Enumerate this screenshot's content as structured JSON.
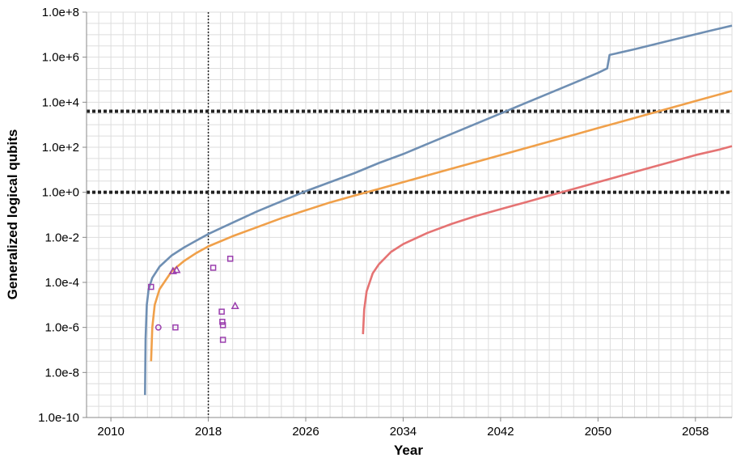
{
  "chart_data": {
    "type": "line",
    "xlabel": "Year",
    "ylabel": "Generalized logical qubits",
    "xlim": [
      2008,
      2061
    ],
    "ylim_log10": [
      -10,
      8
    ],
    "y_scale": "log",
    "grid": true,
    "x_ticks": [
      {
        "value": 2010,
        "label": "2010"
      },
      {
        "value": 2018,
        "label": "2018"
      },
      {
        "value": 2026,
        "label": "2026"
      },
      {
        "value": 2034,
        "label": "2034"
      },
      {
        "value": 2042,
        "label": "2042"
      },
      {
        "value": 2050,
        "label": "2050"
      },
      {
        "value": 2058,
        "label": "2058"
      }
    ],
    "y_ticks": [
      {
        "value_log10": 8,
        "label": "1.0e+8"
      },
      {
        "value_log10": 6,
        "label": "1.0e+6"
      },
      {
        "value_log10": 4,
        "label": "1.0e+4"
      },
      {
        "value_log10": 2,
        "label": "1.0e+2"
      },
      {
        "value_log10": 0,
        "label": "1.0e+0"
      },
      {
        "value_log10": -2,
        "label": "1.0e-2"
      },
      {
        "value_log10": -4,
        "label": "1.0e-4"
      },
      {
        "value_log10": -6,
        "label": "1.0e-6"
      },
      {
        "value_log10": -8,
        "label": "1.0e-8"
      },
      {
        "value_log10": -10,
        "label": "1.0e-10"
      }
    ],
    "reference_lines": {
      "vertical_x": 2018,
      "horizontal_log10": [
        3.6,
        0
      ]
    },
    "series": [
      {
        "color": "#6f8fb3",
        "points": [
          [
            2012.8,
            -9.0
          ],
          [
            2012.85,
            -6.5
          ],
          [
            2012.95,
            -5.0
          ],
          [
            2013.1,
            -4.3
          ],
          [
            2013.4,
            -3.8
          ],
          [
            2014.0,
            -3.3
          ],
          [
            2015.0,
            -2.8
          ],
          [
            2016.0,
            -2.45
          ],
          [
            2017.0,
            -2.15
          ],
          [
            2018.0,
            -1.85
          ],
          [
            2019.0,
            -1.6
          ],
          [
            2020.0,
            -1.35
          ],
          [
            2022.0,
            -0.85
          ],
          [
            2024.0,
            -0.4
          ],
          [
            2026.0,
            0.05
          ],
          [
            2028.0,
            0.45
          ],
          [
            2030.0,
            0.85
          ],
          [
            2032.0,
            1.3
          ],
          [
            2034.0,
            1.7
          ],
          [
            2036.0,
            2.15
          ],
          [
            2038.0,
            2.6
          ],
          [
            2040.0,
            3.05
          ],
          [
            2042.0,
            3.5
          ],
          [
            2044.0,
            3.95
          ],
          [
            2046.0,
            4.4
          ],
          [
            2048.0,
            4.85
          ],
          [
            2050.0,
            5.3
          ],
          [
            2050.75,
            5.5
          ],
          [
            2050.95,
            6.1
          ],
          [
            2053.0,
            6.35
          ],
          [
            2056.0,
            6.75
          ],
          [
            2059.0,
            7.15
          ],
          [
            2061.0,
            7.4
          ]
        ]
      },
      {
        "color": "#f0a04a",
        "points": [
          [
            2013.3,
            -7.5
          ],
          [
            2013.4,
            -6.0
          ],
          [
            2013.6,
            -5.0
          ],
          [
            2014.0,
            -4.3
          ],
          [
            2015.0,
            -3.5
          ],
          [
            2016.0,
            -3.05
          ],
          [
            2017.0,
            -2.7
          ],
          [
            2018.0,
            -2.4
          ],
          [
            2020.0,
            -1.95
          ],
          [
            2022.0,
            -1.55
          ],
          [
            2024.0,
            -1.15
          ],
          [
            2026.0,
            -0.8
          ],
          [
            2028.0,
            -0.45
          ],
          [
            2030.0,
            -0.15
          ],
          [
            2032.0,
            0.15
          ],
          [
            2034.0,
            0.45
          ],
          [
            2036.0,
            0.75
          ],
          [
            2038.0,
            1.05
          ],
          [
            2040.0,
            1.35
          ],
          [
            2042.0,
            1.65
          ],
          [
            2044.0,
            1.95
          ],
          [
            2046.0,
            2.25
          ],
          [
            2048.0,
            2.55
          ],
          [
            2050.0,
            2.85
          ],
          [
            2052.0,
            3.15
          ],
          [
            2054.0,
            3.45
          ],
          [
            2056.0,
            3.75
          ],
          [
            2058.0,
            4.05
          ],
          [
            2060.0,
            4.35
          ],
          [
            2061.0,
            4.5
          ]
        ]
      },
      {
        "color": "#e57373",
        "points": [
          [
            2030.7,
            -6.3
          ],
          [
            2030.8,
            -5.2
          ],
          [
            2031.0,
            -4.4
          ],
          [
            2031.5,
            -3.6
          ],
          [
            2032.0,
            -3.2
          ],
          [
            2033.0,
            -2.65
          ],
          [
            2034.0,
            -2.3
          ],
          [
            2036.0,
            -1.8
          ],
          [
            2038.0,
            -1.4
          ],
          [
            2040.0,
            -1.05
          ],
          [
            2042.0,
            -0.75
          ],
          [
            2044.0,
            -0.45
          ],
          [
            2046.0,
            -0.15
          ],
          [
            2048.0,
            0.15
          ],
          [
            2050.0,
            0.45
          ],
          [
            2052.0,
            0.75
          ],
          [
            2054.0,
            1.05
          ],
          [
            2056.0,
            1.35
          ],
          [
            2058.0,
            1.65
          ],
          [
            2060.0,
            1.9
          ],
          [
            2061.0,
            2.05
          ]
        ]
      }
    ],
    "scatter": {
      "color": "#9b3fae",
      "points": [
        {
          "x": 2013.3,
          "y_log10": -4.2,
          "marker": "square"
        },
        {
          "x": 2013.9,
          "y_log10": -6.0,
          "marker": "circle"
        },
        {
          "x": 2015.1,
          "y_log10": -3.5,
          "marker": "triangle"
        },
        {
          "x": 2015.4,
          "y_log10": -3.45,
          "marker": "triangle"
        },
        {
          "x": 2015.3,
          "y_log10": -6.0,
          "marker": "square"
        },
        {
          "x": 2018.4,
          "y_log10": -3.35,
          "marker": "square"
        },
        {
          "x": 2019.1,
          "y_log10": -5.3,
          "marker": "square"
        },
        {
          "x": 2019.15,
          "y_log10": -5.75,
          "marker": "square"
        },
        {
          "x": 2019.2,
          "y_log10": -5.9,
          "marker": "square"
        },
        {
          "x": 2019.2,
          "y_log10": -6.55,
          "marker": "square"
        },
        {
          "x": 2019.8,
          "y_log10": -2.95,
          "marker": "square"
        },
        {
          "x": 2020.2,
          "y_log10": -5.05,
          "marker": "triangle"
        }
      ]
    }
  }
}
